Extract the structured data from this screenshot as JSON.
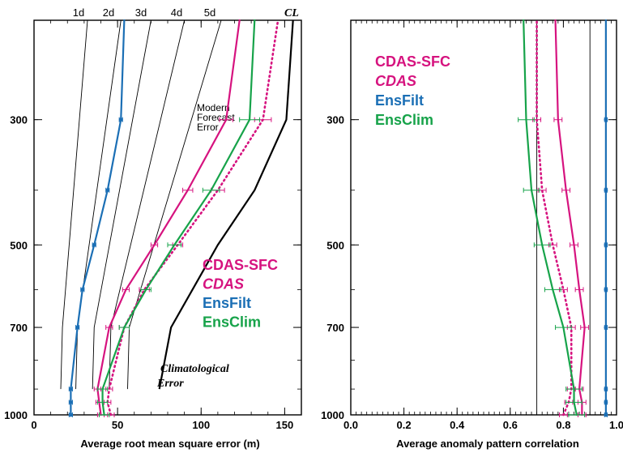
{
  "chart_data": [
    {
      "type": "line",
      "xlabel": "Average root mean square error (m)",
      "xlim": [
        0,
        160
      ],
      "xticks": [
        0,
        50,
        100,
        150
      ],
      "ylim": [
        1000,
        200
      ],
      "yscale": "log",
      "yticks": [
        300,
        500,
        700,
        1000
      ],
      "levels": [
        1000,
        950,
        900,
        700,
        600,
        500,
        400,
        300,
        200
      ],
      "series": [
        {
          "name": "CDAS-SFC",
          "color": "#d6137f",
          "style": "solid",
          "values": [
            40,
            39,
            38,
            45,
            55,
            72,
            92,
            115,
            123
          ],
          "error": [
            2,
            2,
            2,
            2,
            2,
            2,
            3,
            4,
            0
          ]
        },
        {
          "name": "CDAS",
          "color": "#d6137f",
          "style": "dotted",
          "values": [
            46,
            44,
            45,
            54,
            66,
            86,
            110,
            137,
            146
          ],
          "error": [
            2,
            2,
            2,
            3,
            3,
            3,
            4,
            5,
            0
          ]
        },
        {
          "name": "EnsFilt",
          "color": "#1b6fb5",
          "style": "solid",
          "values": [
            22,
            22,
            22,
            26,
            29,
            36,
            44,
            52,
            54
          ],
          "error": [
            1,
            1,
            1,
            1,
            1,
            1,
            1,
            1,
            0
          ]
        },
        {
          "name": "EnsClim",
          "color": "#17a34a",
          "style": "solid",
          "values": [
            42,
            41,
            41,
            54,
            67,
            84,
            106,
            129,
            132
          ],
          "error": [
            3,
            3,
            3,
            3,
            3,
            4,
            5,
            6,
            0
          ]
        }
      ],
      "reference_lines": {
        "CL": {
          "levels": [
            900,
            700,
            500,
            400,
            300,
            200
          ],
          "values": [
            75,
            82,
            110,
            132,
            151,
            155
          ]
        },
        "lead_days": [
          {
            "label": "1d",
            "levels": [
              900,
              700,
              200
            ],
            "values": [
              16,
              17,
              32
            ]
          },
          {
            "label": "2d",
            "levels": [
              900,
              700,
              200
            ],
            "values": [
              25,
              26,
              52
            ]
          },
          {
            "label": "3d",
            "levels": [
              900,
              700,
              200
            ],
            "values": [
              35,
              36,
              70
            ]
          },
          {
            "label": "4d",
            "levels": [
              900,
              700,
              200
            ],
            "values": [
              45,
              46,
              90
            ]
          },
          {
            "label": "5d",
            "levels": [
              900,
              700,
              200
            ],
            "values": [
              56,
              57,
              112
            ]
          }
        ]
      },
      "top_labels": [
        "1d",
        "2d",
        "3d",
        "4d",
        "5d",
        "CL"
      ],
      "annotations": {
        "modern": [
          "Modern",
          "Forecast",
          "Error"
        ],
        "climatological": [
          "Climatological",
          "Error"
        ]
      },
      "legend": [
        "CDAS-SFC",
        "CDAS",
        "EnsFilt",
        "EnsClim"
      ],
      "legend_position": "lower-right"
    },
    {
      "type": "line",
      "xlabel": "Average anomaly pattern correlation",
      "xlim": [
        0.0,
        1.0
      ],
      "xticks": [
        0.0,
        0.2,
        0.4,
        0.6,
        0.8,
        1.0
      ],
      "ylim": [
        1000,
        200
      ],
      "yscale": "log",
      "yticks": [
        300,
        500,
        700,
        1000
      ],
      "levels": [
        1000,
        950,
        900,
        700,
        600,
        500,
        400,
        300,
        200
      ],
      "series": [
        {
          "name": "CDAS-SFC",
          "color": "#d6137f",
          "style": "solid",
          "values": [
            0.87,
            0.87,
            0.86,
            0.88,
            0.86,
            0.84,
            0.81,
            0.78,
            0.77
          ],
          "error": [
            0.015,
            0.015,
            0.015,
            0.015,
            0.015,
            0.015,
            0.015,
            0.015,
            0
          ]
        },
        {
          "name": "CDAS",
          "color": "#d6137f",
          "style": "dotted",
          "values": [
            0.8,
            0.82,
            0.83,
            0.83,
            0.8,
            0.76,
            0.72,
            0.7,
            0.7
          ],
          "error": [
            0.015,
            0.015,
            0.015,
            0.015,
            0.015,
            0.015,
            0.015,
            0.015,
            0
          ]
        },
        {
          "name": "EnsFilt",
          "color": "#1b6fb5",
          "style": "solid",
          "values": [
            0.96,
            0.96,
            0.96,
            0.96,
            0.96,
            0.96,
            0.96,
            0.96,
            0.96
          ],
          "error": [
            0.005,
            0.005,
            0.005,
            0.005,
            0.005,
            0.005,
            0.005,
            0.005,
            0
          ]
        },
        {
          "name": "EnsClim",
          "color": "#17a34a",
          "style": "solid",
          "values": [
            0.85,
            0.84,
            0.84,
            0.8,
            0.76,
            0.72,
            0.68,
            0.66,
            0.65
          ],
          "error": [
            0.03,
            0.03,
            0.03,
            0.03,
            0.03,
            0.03,
            0.03,
            0.03,
            0
          ]
        }
      ],
      "reference_lines": [
        0.7,
        0.9
      ],
      "legend": [
        "CDAS-SFC",
        "CDAS",
        "EnsFilt",
        "EnsClim"
      ],
      "legend_position": "upper-left"
    }
  ]
}
